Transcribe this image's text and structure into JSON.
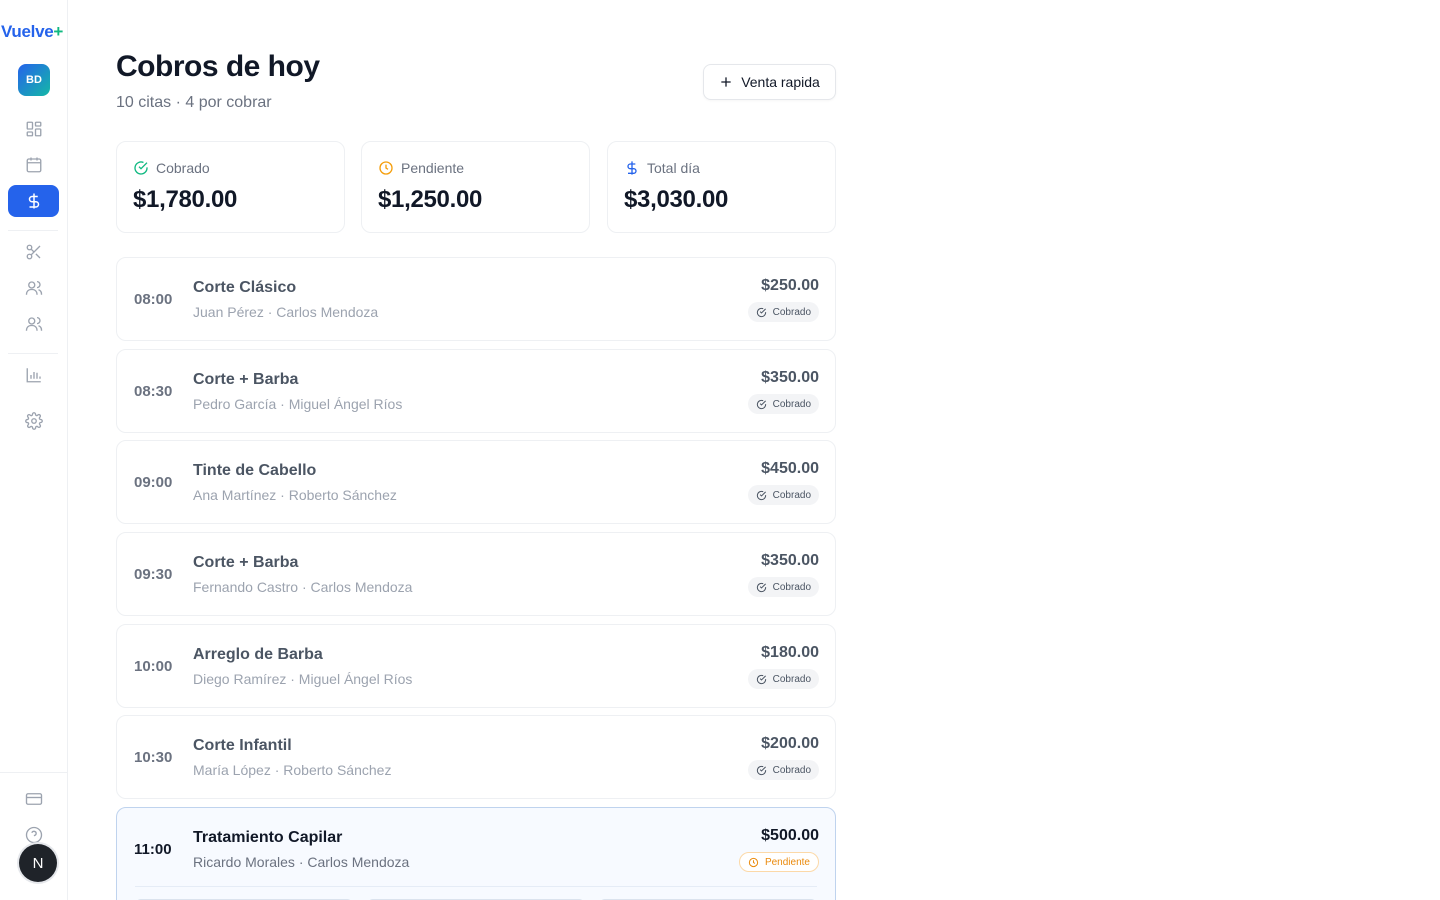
{
  "app": {
    "logo_main": "Vuelve",
    "logo_plus": "+"
  },
  "user": {
    "initials": "BD",
    "bottom_avatar": "N"
  },
  "sidebar": {
    "items": [
      {
        "name": "dashboard",
        "icon": "dashboard-icon",
        "active": false
      },
      {
        "name": "calendar",
        "icon": "calendar-icon",
        "active": false
      },
      {
        "name": "payments",
        "icon": "dollar-icon",
        "active": true
      },
      {
        "name": "services",
        "icon": "scissors-icon",
        "active": false
      },
      {
        "name": "clients",
        "icon": "users-icon",
        "active": false
      },
      {
        "name": "staff",
        "icon": "team-icon",
        "active": false
      },
      {
        "name": "reports",
        "icon": "bar-chart-icon",
        "active": false
      },
      {
        "name": "settings",
        "icon": "gear-icon",
        "active": false
      },
      {
        "name": "billing",
        "icon": "credit-card-icon",
        "active": false
      },
      {
        "name": "help",
        "icon": "help-icon",
        "active": false
      }
    ]
  },
  "header": {
    "title": "Cobros de hoy",
    "subtitle": "10 citas · 4 por cobrar",
    "quick_sale_label": "Venta rapida"
  },
  "stats": [
    {
      "label": "Cobrado",
      "value": "$1,780.00",
      "icon": "check-circle-icon",
      "color": "#10b981"
    },
    {
      "label": "Pendiente",
      "value": "$1,250.00",
      "icon": "clock-icon",
      "color": "#f59e0b"
    },
    {
      "label": "Total día",
      "value": "$3,030.00",
      "icon": "dollar-icon",
      "color": "#2563eb"
    }
  ],
  "appointments": [
    {
      "time": "08:00",
      "service": "Corte Clásico",
      "people": "Juan Pérez · Carlos Mendoza",
      "amount": "$250.00",
      "status": "Cobrado"
    },
    {
      "time": "08:30",
      "service": "Corte + Barba",
      "people": "Pedro García · Miguel Ángel Ríos",
      "amount": "$350.00",
      "status": "Cobrado"
    },
    {
      "time": "09:00",
      "service": "Tinte de Cabello",
      "people": "Ana Martínez · Roberto Sánchez",
      "amount": "$450.00",
      "status": "Cobrado"
    },
    {
      "time": "09:30",
      "service": "Corte + Barba",
      "people": "Fernando Castro · Carlos Mendoza",
      "amount": "$350.00",
      "status": "Cobrado"
    },
    {
      "time": "10:00",
      "service": "Arreglo de Barba",
      "people": "Diego Ramírez · Miguel Ángel Ríos",
      "amount": "$180.00",
      "status": "Cobrado"
    },
    {
      "time": "10:30",
      "service": "Corte Infantil",
      "people": "María López · Roberto Sánchez",
      "amount": "$200.00",
      "status": "Cobrado"
    },
    {
      "time": "11:00",
      "service": "Tratamiento Capilar",
      "people": "Ricardo Morales · Carlos Mendoza",
      "amount": "$500.00",
      "status": "Pendiente"
    }
  ]
}
